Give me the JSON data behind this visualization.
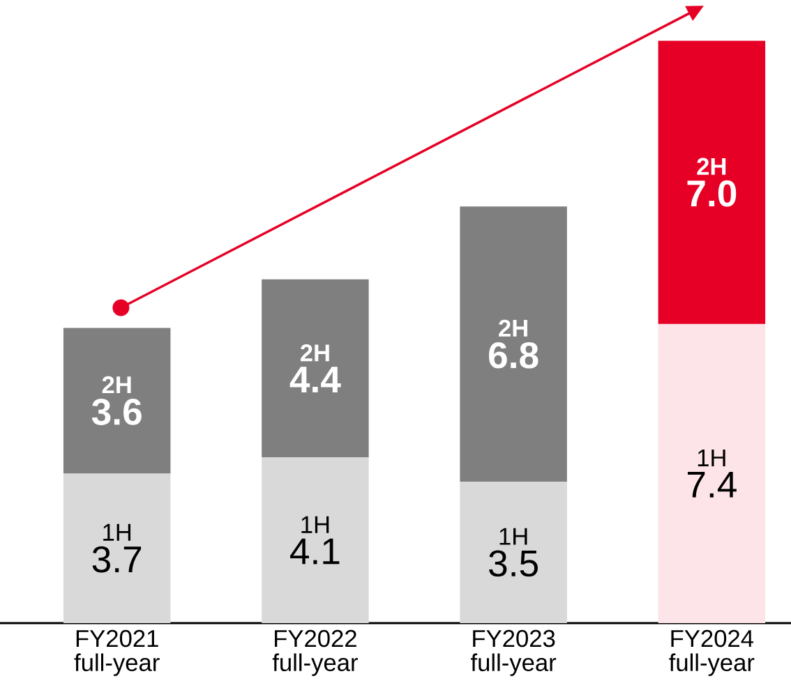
{
  "chart_data": {
    "type": "bar",
    "stacked": true,
    "categories": [
      "FY2021 full-year",
      "FY2022 full-year",
      "FY2023 full-year",
      "FY2024 full-year"
    ],
    "series": [
      {
        "name": "1H",
        "colors": [
          "#d9d9d9",
          "#d9d9d9",
          "#d9d9d9",
          "#fde4e8"
        ],
        "values": [
          3.7,
          4.1,
          3.5,
          7.4
        ],
        "value_labels": [
          "3.7",
          "4.1",
          "3.5",
          "7.4"
        ]
      },
      {
        "name": "2H",
        "colors": [
          "#7f7f7f",
          "#7f7f7f",
          "#7f7f7f",
          "#e60026"
        ],
        "values": [
          3.6,
          4.4,
          6.8,
          7.0
        ],
        "value_labels": [
          "3.6",
          "4.4",
          "6.8",
          "7.0"
        ]
      }
    ]
  }
}
